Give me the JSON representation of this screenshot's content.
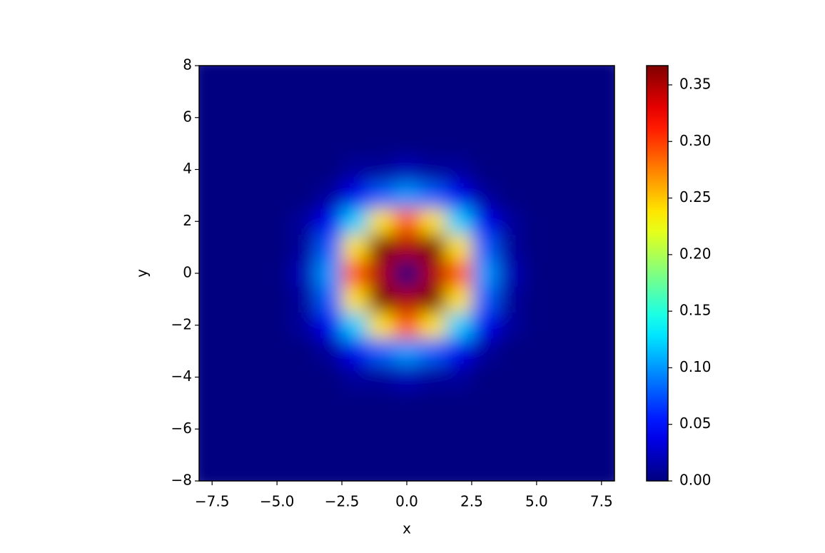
{
  "chart_data": {
    "type": "heatmap",
    "xlabel": "x",
    "ylabel": "y",
    "x": [
      -8,
      -7,
      -6,
      -5,
      -4,
      -3,
      -2,
      -1,
      0,
      1,
      2,
      3,
      4,
      5,
      6,
      7,
      8
    ],
    "y": [
      -8,
      -7,
      -6,
      -5,
      -4,
      -3,
      -2,
      -1,
      0,
      1,
      2,
      3,
      4,
      5,
      6,
      7,
      8
    ],
    "z": [
      [
        0,
        0,
        0,
        0,
        0,
        0,
        0,
        0,
        0,
        0,
        0,
        0,
        0,
        0,
        0,
        0,
        0
      ],
      [
        0,
        0,
        0,
        0,
        0,
        0,
        0,
        0,
        0,
        0,
        0,
        0,
        0,
        0,
        0,
        0,
        0
      ],
      [
        0,
        0,
        0,
        0,
        0,
        0,
        0,
        0,
        0,
        0,
        0,
        0,
        0,
        0,
        0,
        0,
        0
      ],
      [
        0,
        0,
        0,
        0,
        0,
        0,
        0,
        0,
        0,
        0,
        0,
        0,
        0,
        0,
        0,
        0,
        0
      ],
      [
        0,
        0,
        0,
        0,
        0,
        0,
        0.01,
        0.01,
        0.02,
        0.01,
        0.01,
        0,
        0,
        0,
        0,
        0,
        0
      ],
      [
        0,
        0,
        0,
        0,
        0,
        0.01,
        0.04,
        0.08,
        0.1,
        0.08,
        0.04,
        0.01,
        0,
        0,
        0,
        0,
        0
      ],
      [
        0,
        0,
        0,
        0,
        0.01,
        0.04,
        0.12,
        0.24,
        0.29,
        0.24,
        0.12,
        0.04,
        0.01,
        0,
        0,
        0,
        0
      ],
      [
        0,
        0,
        0,
        0,
        0.01,
        0.08,
        0.24,
        0.37,
        0.35,
        0.37,
        0.24,
        0.08,
        0.01,
        0,
        0,
        0,
        0
      ],
      [
        0,
        0,
        0,
        0,
        0.02,
        0.1,
        0.29,
        0.35,
        0,
        0.35,
        0.29,
        0.1,
        0.02,
        0,
        0,
        0,
        0
      ],
      [
        0,
        0,
        0,
        0,
        0.01,
        0.08,
        0.24,
        0.37,
        0.35,
        0.37,
        0.24,
        0.08,
        0.01,
        0,
        0,
        0,
        0
      ],
      [
        0,
        0,
        0,
        0,
        0.01,
        0.04,
        0.12,
        0.24,
        0.29,
        0.24,
        0.12,
        0.04,
        0.01,
        0,
        0,
        0,
        0
      ],
      [
        0,
        0,
        0,
        0,
        0,
        0.01,
        0.04,
        0.08,
        0.1,
        0.08,
        0.04,
        0.01,
        0,
        0,
        0,
        0,
        0
      ],
      [
        0,
        0,
        0,
        0,
        0,
        0,
        0.01,
        0.01,
        0.02,
        0.01,
        0.01,
        0,
        0,
        0,
        0,
        0,
        0
      ],
      [
        0,
        0,
        0,
        0,
        0,
        0,
        0,
        0,
        0,
        0,
        0,
        0,
        0,
        0,
        0,
        0,
        0
      ],
      [
        0,
        0,
        0,
        0,
        0,
        0,
        0,
        0,
        0,
        0,
        0,
        0,
        0,
        0,
        0,
        0,
        0
      ],
      [
        0,
        0,
        0,
        0,
        0,
        0,
        0,
        0,
        0,
        0,
        0,
        0,
        0,
        0,
        0,
        0,
        0
      ],
      [
        0,
        0,
        0,
        0,
        0,
        0,
        0,
        0,
        0,
        0,
        0,
        0,
        0,
        0,
        0,
        0,
        0
      ]
    ],
    "colormap": "jet",
    "xlim": [
      -8,
      8
    ],
    "ylim": [
      -8,
      8
    ],
    "xticks": [
      {
        "value": -7.5,
        "label": "−7.5"
      },
      {
        "value": -5,
        "label": "−5.0"
      },
      {
        "value": -2.5,
        "label": "−2.5"
      },
      {
        "value": 0,
        "label": "0.0"
      },
      {
        "value": 2.5,
        "label": "2.5"
      },
      {
        "value": 5,
        "label": "5.0"
      },
      {
        "value": 7.5,
        "label": "7.5"
      }
    ],
    "yticks": [
      {
        "value": -8,
        "label": "−8"
      },
      {
        "value": -6,
        "label": "−6"
      },
      {
        "value": -4,
        "label": "−4"
      },
      {
        "value": -2,
        "label": "−2"
      },
      0,
      2,
      4,
      6,
      8
    ],
    "clim": [
      0,
      0.367
    ],
    "cticks": [
      {
        "value": 0,
        "label": "0.00"
      },
      {
        "value": 0.05,
        "label": "0.05"
      },
      {
        "value": 0.1,
        "label": "0.10"
      },
      {
        "value": 0.15,
        "label": "0.15"
      },
      {
        "value": 0.2,
        "label": "0.20"
      },
      {
        "value": 0.25,
        "label": "0.25"
      },
      {
        "value": 0.3,
        "label": "0.30"
      },
      {
        "value": 0.35,
        "label": "0.35"
      }
    ]
  }
}
